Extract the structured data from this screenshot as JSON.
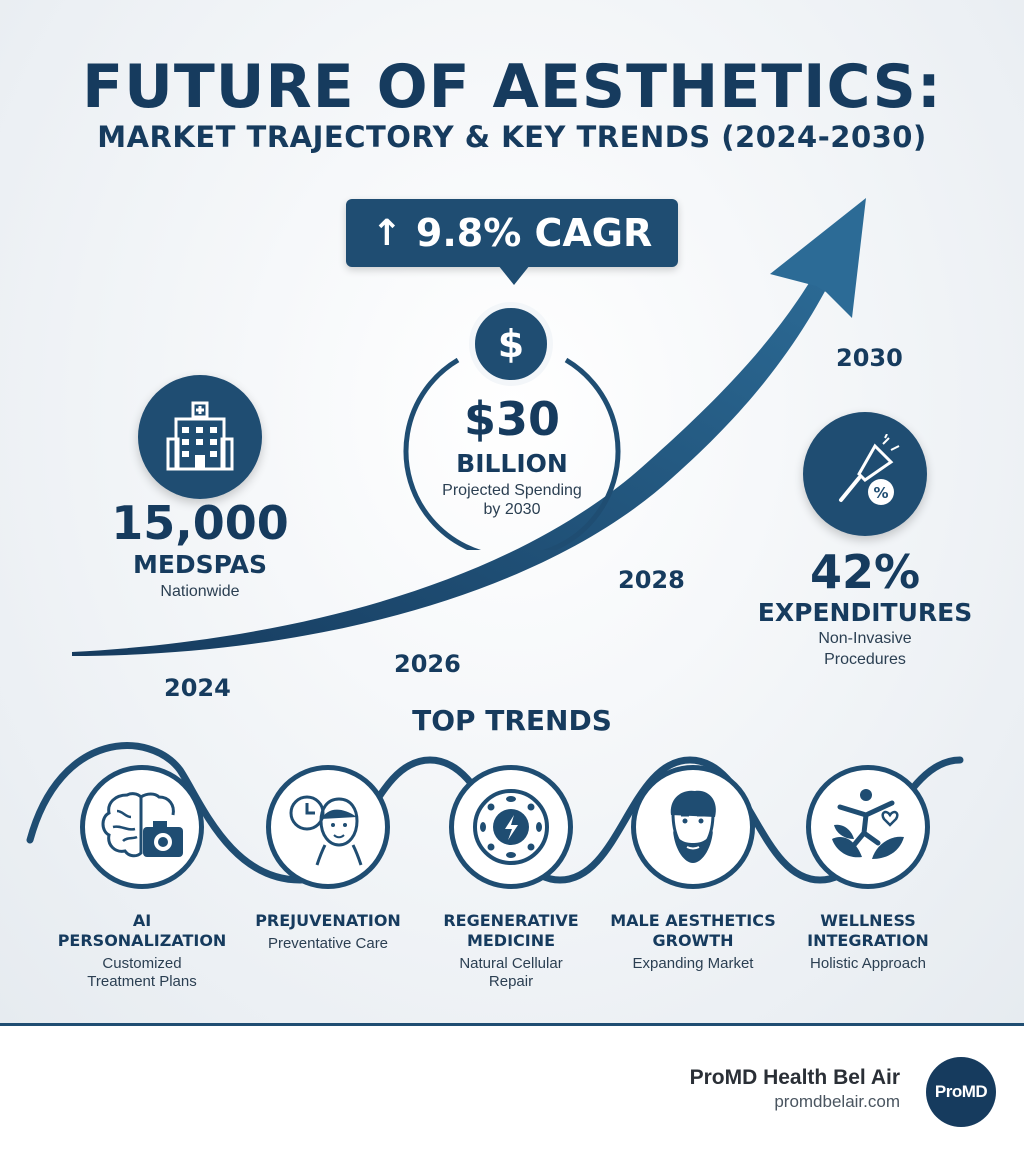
{
  "header": {
    "title": "FUTURE OF AESTHETICS:",
    "subtitle": "MARKET TRAJECTORY & KEY TRENDS (2024-2030)"
  },
  "cagr_badge": {
    "arrow": "↑",
    "label": "9.8% CAGR"
  },
  "growth_curve": {
    "years": [
      "2024",
      "2026",
      "2028",
      "2030"
    ]
  },
  "stats": {
    "spending": {
      "icon": "dollar-icon",
      "symbol": "$",
      "value": "$30",
      "unit": "BILLION",
      "line1": "Projected Spending",
      "line2": "by 2030"
    },
    "medspas": {
      "icon": "hospital-building-icon",
      "value": "15,000",
      "label": "MEDSPAS",
      "sub": "Nationwide"
    },
    "expenditures": {
      "icon": "laser-device-percent-icon",
      "value": "42%",
      "label": "EXPENDITURES",
      "line1": "Non-Invasive",
      "line2": "Procedures"
    }
  },
  "trends": {
    "title": "TOP TRENDS",
    "items": [
      {
        "icon": "brain-camera-icon",
        "name1": "AI",
        "name2": "PERSONALIZATION",
        "desc1": "Customized",
        "desc2": "Treatment Plans"
      },
      {
        "icon": "clock-face-icon",
        "name1": "PREJUVENATION",
        "name2": "",
        "desc1": "Preventative Care",
        "desc2": ""
      },
      {
        "icon": "cell-energy-icon",
        "name1": "REGENERATIVE",
        "name2": "MEDICINE",
        "desc1": "Natural Cellular",
        "desc2": "Repair"
      },
      {
        "icon": "bearded-man-icon",
        "name1": "MALE AESTHETICS",
        "name2": "GROWTH",
        "desc1": "Expanding Market",
        "desc2": ""
      },
      {
        "icon": "wellness-figure-leaves-icon",
        "name1": "WELLNESS",
        "name2": "INTEGRATION",
        "desc1": "Holistic Approach",
        "desc2": ""
      }
    ]
  },
  "footer": {
    "brand": "ProMD Health Bel Air",
    "url": "promdbelair.com",
    "logo_text": "ProMD"
  },
  "colors": {
    "primary": "#1f4d72",
    "dark_text": "#163b5e",
    "background": "#f2f5f8"
  }
}
